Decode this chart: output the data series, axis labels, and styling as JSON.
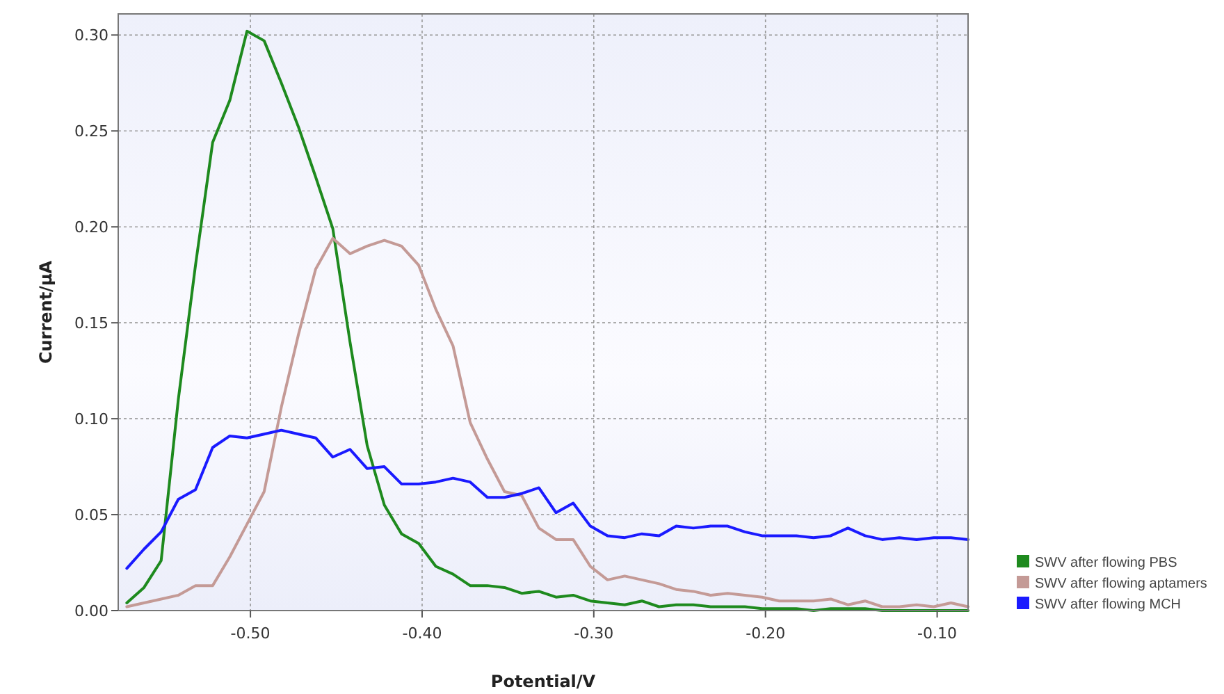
{
  "chart_data": {
    "type": "line",
    "xlabel": "Potential/V",
    "ylabel": "Current/µA",
    "x": [
      -0.572,
      -0.562,
      -0.552,
      -0.542,
      -0.532,
      -0.522,
      -0.512,
      -0.502,
      -0.492,
      -0.482,
      -0.472,
      -0.462,
      -0.452,
      -0.442,
      -0.432,
      -0.422,
      -0.412,
      -0.402,
      -0.392,
      -0.382,
      -0.372,
      -0.362,
      -0.352,
      -0.342,
      -0.332,
      -0.322,
      -0.312,
      -0.302,
      -0.292,
      -0.282,
      -0.272,
      -0.262,
      -0.252,
      -0.242,
      -0.232,
      -0.222,
      -0.212,
      -0.202,
      -0.192,
      -0.182,
      -0.172,
      -0.162,
      -0.152,
      -0.142,
      -0.132,
      -0.122,
      -0.112,
      -0.102,
      -0.092,
      -0.082
    ],
    "series": [
      {
        "name": "SWV after flowing PBS",
        "color": "#1e8a1e",
        "values": [
          0.004,
          0.012,
          0.026,
          0.11,
          0.18,
          0.244,
          0.266,
          0.302,
          0.297,
          0.275,
          0.252,
          0.226,
          0.199,
          0.14,
          0.086,
          0.055,
          0.04,
          0.035,
          0.023,
          0.019,
          0.013,
          0.013,
          0.012,
          0.009,
          0.01,
          0.007,
          0.008,
          0.005,
          0.004,
          0.003,
          0.005,
          0.002,
          0.003,
          0.003,
          0.002,
          0.002,
          0.002,
          0.001,
          0.001,
          0.001,
          0.0,
          0.001,
          0.001,
          0.001,
          0.0,
          0.0,
          0.0,
          0.0,
          0.0,
          0.0
        ]
      },
      {
        "name": "SWV after flowing aptamers",
        "color": "#c49a96",
        "values": [
          0.002,
          0.004,
          0.006,
          0.008,
          0.013,
          0.013,
          0.028,
          0.045,
          0.062,
          0.106,
          0.144,
          0.178,
          0.194,
          0.186,
          0.19,
          0.193,
          0.19,
          0.18,
          0.157,
          0.138,
          0.098,
          0.079,
          0.062,
          0.06,
          0.043,
          0.037,
          0.037,
          0.023,
          0.016,
          0.018,
          0.016,
          0.014,
          0.011,
          0.01,
          0.008,
          0.009,
          0.008,
          0.007,
          0.005,
          0.005,
          0.005,
          0.006,
          0.003,
          0.005,
          0.002,
          0.002,
          0.003,
          0.002,
          0.004,
          0.002
        ]
      },
      {
        "name": "SWV after flowing MCH",
        "color": "#1a1aff",
        "values": [
          0.022,
          0.032,
          0.041,
          0.058,
          0.063,
          0.085,
          0.091,
          0.09,
          0.092,
          0.094,
          0.092,
          0.09,
          0.08,
          0.084,
          0.074,
          0.075,
          0.066,
          0.066,
          0.067,
          0.069,
          0.067,
          0.059,
          0.059,
          0.061,
          0.064,
          0.051,
          0.056,
          0.044,
          0.039,
          0.038,
          0.04,
          0.039,
          0.044,
          0.043,
          0.044,
          0.044,
          0.041,
          0.039,
          0.039,
          0.039,
          0.038,
          0.039,
          0.043,
          0.039,
          0.037,
          0.038,
          0.037,
          0.038,
          0.038,
          0.037
        ]
      }
    ],
    "xlim": [
      -0.577,
      -0.082
    ],
    "xticks": [
      {
        "value": -0.5,
        "label": "-0.50"
      },
      {
        "value": -0.4,
        "label": "-0.40"
      },
      {
        "value": -0.3,
        "label": "-0.30"
      },
      {
        "value": -0.2,
        "label": "-0.20"
      },
      {
        "value": -0.1,
        "label": "-0.10"
      }
    ],
    "ylim": [
      0,
      0.311
    ],
    "yticks": [
      {
        "value": 0,
        "label": "0.00"
      },
      {
        "value": 0.05,
        "label": "0.05"
      },
      {
        "value": 0.1,
        "label": "0.10"
      },
      {
        "value": 0.15,
        "label": "0.15"
      },
      {
        "value": 0.2,
        "label": "0.20"
      },
      {
        "value": 0.25,
        "label": "0.25"
      },
      {
        "value": 0.3,
        "label": "0.30"
      }
    ],
    "grid": true,
    "legend": "right",
    "line_style": "solid",
    "marker": "none"
  }
}
